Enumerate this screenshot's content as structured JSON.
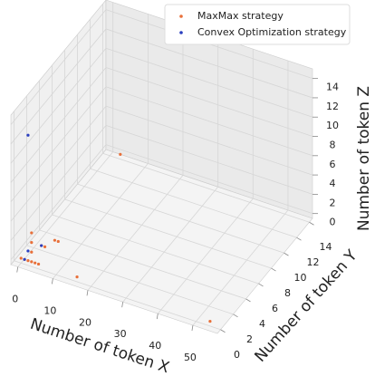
{
  "chart_data": {
    "type": "scatter3d",
    "xlabel": "Number of token X",
    "ylabel": "Number of token Y",
    "zlabel": "Number of token Z",
    "series": [
      {
        "name": "MaxMax strategy",
        "color": "#e8703a",
        "x": [
          0,
          1,
          2,
          3,
          4,
          5,
          3,
          3,
          3,
          4,
          5,
          6,
          7,
          16,
          54,
          3
        ],
        "y": [
          0,
          0,
          0,
          0,
          0,
          0,
          0,
          0,
          0,
          1,
          1,
          2,
          2,
          0,
          0,
          14
        ],
        "z": [
          0,
          0,
          0,
          0,
          0,
          0,
          1,
          2,
          3,
          1,
          1,
          1,
          1,
          0,
          0,
          0
        ]
      },
      {
        "name": "Convex Optimization strategy",
        "color": "#2a3fbf",
        "x": [
          2,
          1,
          2,
          4
        ],
        "y": [
          0,
          0,
          0,
          1
        ],
        "z": [
          13,
          0,
          1,
          1
        ]
      }
    ],
    "xlim": [
      -2,
      57
    ],
    "ylim": [
      -0.5,
      14.5
    ],
    "zlim": [
      -0.5,
      15
    ],
    "xticks": [
      0,
      10,
      20,
      30,
      40,
      50
    ],
    "yticks": [
      0,
      2,
      4,
      6,
      8,
      10,
      12,
      14
    ],
    "zticks": [
      0,
      2,
      4,
      6,
      8,
      10,
      12,
      14
    ],
    "grid": true,
    "legend": "upper right"
  }
}
